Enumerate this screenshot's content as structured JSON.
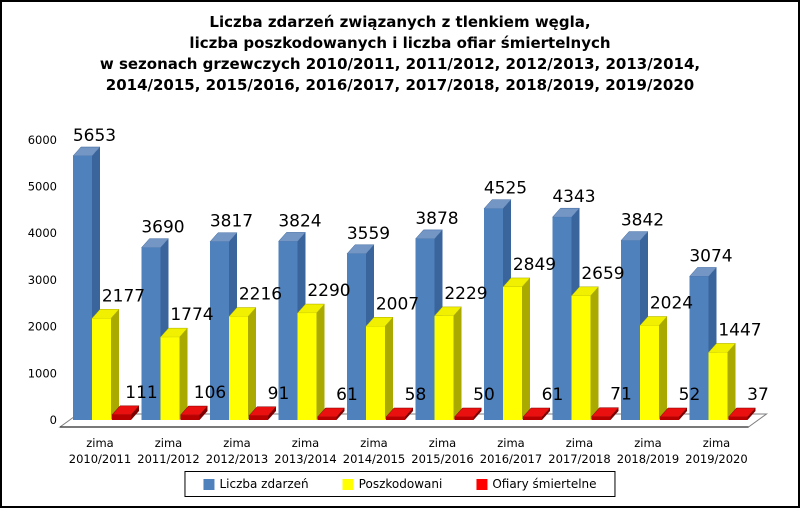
{
  "title": {
    "lines": [
      "Liczba zdarzeń związanych z tlenkiem węgla,",
      "liczba poszkodowanych i liczba ofiar śmiertelnych",
      "w sezonach grzewczych 2010/2011, 2011/2012, 2012/2013, 2013/2014,",
      "2014/2015, 2015/2016, 2016/2017, 2017/2018, 2018/2019, 2019/2020"
    ]
  },
  "chart_data": {
    "type": "bar",
    "title": "Liczba zdarzeń związanych z tlenkiem węgla, liczba poszkodowanych i liczba ofiar śmiertelnych w sezonach grzewczych 2010/2011, 2011/2012, 2012/2013, 2013/2014, 2014/2015, 2015/2016, 2016/2017, 2017/2018, 2018/2019, 2019/2020",
    "style": "3d-column",
    "grid": false,
    "legend_position": "bottom",
    "ylim": [
      0,
      6000
    ],
    "yticks": [
      0,
      1000,
      2000,
      3000,
      4000,
      5000,
      6000
    ],
    "categories": [
      "zima 2010/2011",
      "zima 2011/2012",
      "zima 2012/2013",
      "zima 2013/2014",
      "zima 2014/2015",
      "zima 2015/2016",
      "zima 2016/2017",
      "zima 2017/2018",
      "zima 2018/2019",
      "zima 2019/2020"
    ],
    "series": [
      {
        "name": "Liczba zdarzeń",
        "color": "#4f81bd",
        "shades": {
          "front": "#4f81bd",
          "top": "#7396c5",
          "side": "#3a659c"
        },
        "values": [
          5653,
          3690,
          3817,
          3824,
          3559,
          3878,
          4525,
          4343,
          3842,
          3074
        ]
      },
      {
        "name": "Poszkodowani",
        "color": "#ffff00",
        "shades": {
          "front": "#ffff00",
          "top": "#f0f000",
          "side": "#a9a900"
        },
        "values": [
          2177,
          1774,
          2216,
          2290,
          2007,
          2229,
          2849,
          2659,
          2024,
          1447
        ]
      },
      {
        "name": "Ofiary śmiertelne",
        "color": "#ff0000",
        "shades": {
          "front": "#b80000",
          "top": "#ea1010",
          "side": "#7d0000"
        },
        "values": [
          111,
          106,
          91,
          61,
          58,
          50,
          61,
          71,
          52,
          37
        ]
      }
    ],
    "value_label_color": "#000000",
    "axis_label_color": "#000000",
    "floor_outline_color": "#7f7f7f"
  }
}
